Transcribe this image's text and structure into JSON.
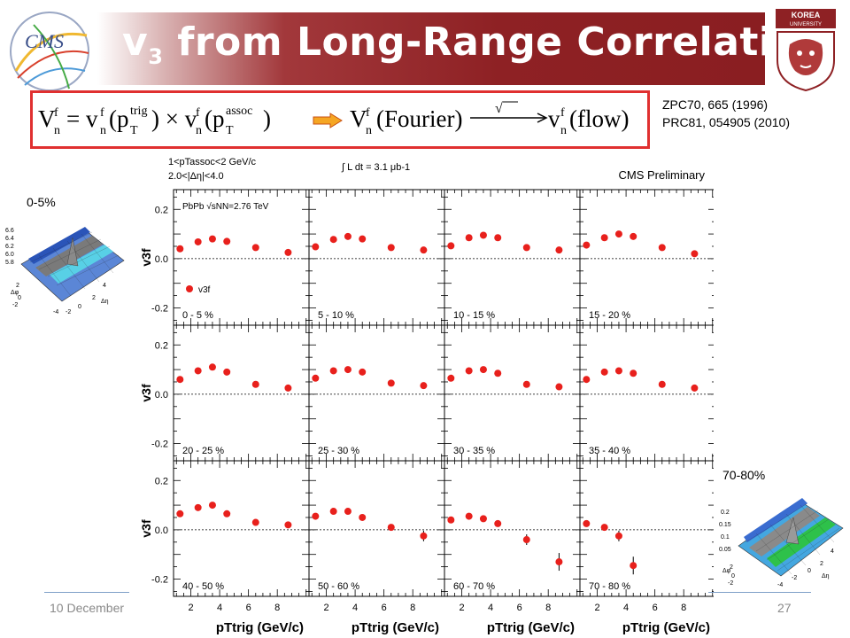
{
  "slide": {
    "title_main": "v",
    "title_sub": "3",
    "title_rest": " from Long-Range Correlations",
    "formula_left": "Vnf = vnf(pTtrig) × vnf(pTassoc)",
    "formula_right": "Vnf(Fourier) —√→ vnf(flow)",
    "refs": [
      "ZPC70, 665 (1996)",
      "PRC81, 054905 (2010)"
    ],
    "inset_left_label": "0-5%",
    "inset_right_label": "70-80%",
    "footer_date": "10 December",
    "page_number": "27",
    "colors": {
      "title_bg": "#8e2124",
      "box": "#e03030",
      "marker": "#e8201c",
      "footer": "#8a8a8a"
    }
  },
  "chart_data": {
    "type": "scatter",
    "header_left": [
      "1<pTassoc<2 GeV/c",
      "2.0<|Δη|<4.0"
    ],
    "header_mid": "∫ L dt = 3.1 μb-1",
    "header_right": "CMS Preliminary",
    "system_label": "PbPb √sNN=2.76 TeV",
    "legend": "v3f",
    "xlabel": "pTtrig (GeV/c)",
    "ylabel": "v3f",
    "xlim": [
      0.8,
      10.2
    ],
    "ylim": [
      -0.27,
      0.28
    ],
    "x_ticks": [
      2,
      4,
      6,
      8
    ],
    "y_ticks": [
      -0.2,
      0.0,
      0.2
    ],
    "grid": false,
    "x": [
      1.25,
      2.5,
      3.5,
      4.5,
      6.5,
      8.75
    ],
    "panels": [
      {
        "label": "0 - 5 %",
        "values": [
          0.04,
          0.068,
          0.08,
          0.07,
          0.045,
          0.025
        ]
      },
      {
        "label": "5 - 10 %",
        "values": [
          0.048,
          0.078,
          0.09,
          0.08,
          0.045,
          0.035
        ]
      },
      {
        "label": "10 - 15 %",
        "values": [
          0.052,
          0.085,
          0.095,
          0.085,
          0.045,
          0.035
        ]
      },
      {
        "label": "15 - 20 %",
        "values": [
          0.055,
          0.085,
          0.1,
          0.09,
          0.045,
          0.02
        ]
      },
      {
        "label": "20 - 25 %",
        "values": [
          0.06,
          0.095,
          0.11,
          0.09,
          0.04,
          0.025
        ]
      },
      {
        "label": "25 - 30 %",
        "values": [
          0.065,
          0.095,
          0.1,
          0.09,
          0.045,
          0.035
        ]
      },
      {
        "label": "30 - 35 %",
        "values": [
          0.065,
          0.095,
          0.1,
          0.085,
          0.04,
          0.03
        ]
      },
      {
        "label": "35 - 40 %",
        "values": [
          0.06,
          0.09,
          0.095,
          0.085,
          0.04,
          0.025
        ]
      },
      {
        "label": "40 - 50 %",
        "values": [
          0.065,
          0.09,
          0.1,
          0.065,
          0.03,
          0.02
        ]
      },
      {
        "label": "50 - 60 %",
        "values": [
          0.055,
          0.075,
          0.075,
          0.05,
          0.01,
          -0.025
        ]
      },
      {
        "label": "60 - 70 %",
        "values": [
          0.04,
          0.055,
          0.045,
          0.025,
          -0.04,
          -0.13
        ]
      },
      {
        "label": "70 - 80 %",
        "values": [
          0.025,
          0.01,
          -0.025,
          -0.145,
          null,
          null
        ]
      }
    ]
  }
}
